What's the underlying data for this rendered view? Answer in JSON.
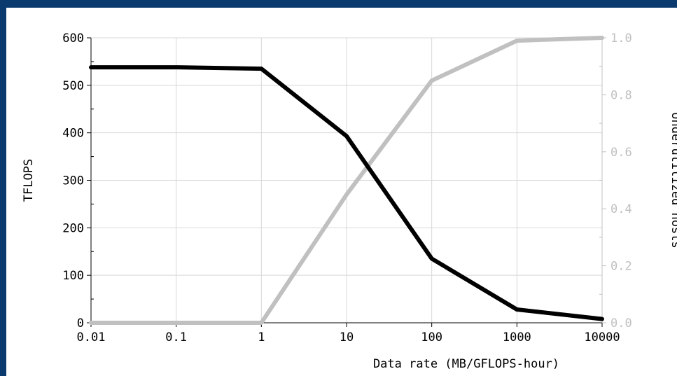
{
  "chart_data": {
    "type": "line",
    "xlabel": "Data rate (MB/GFLOPS-hour)",
    "ylabel": "TFLOPS",
    "y2label": "Underutilized hosts",
    "x_scale": "log",
    "xlim": [
      0.01,
      10000
    ],
    "ylim": [
      0,
      600
    ],
    "y2lim": [
      0.0,
      1.0
    ],
    "x_ticks": [
      "0.01",
      "0.1",
      "1",
      "10",
      "100",
      "1000",
      "10000"
    ],
    "y_ticks": [
      "0",
      "100",
      "200",
      "300",
      "400",
      "500",
      "600"
    ],
    "y2_ticks": [
      "0.0",
      "0.2",
      "0.4",
      "0.6",
      "0.8",
      "1.0"
    ],
    "grid": true,
    "series": [
      {
        "axis": "left",
        "color": "#000000",
        "x": [
          0.01,
          0.1,
          1,
          10,
          100,
          1000,
          10000
        ],
        "y": [
          538,
          538,
          535,
          393,
          135,
          28,
          8
        ]
      },
      {
        "axis": "right",
        "color": "#c0c0c0",
        "x": [
          0.01,
          0.1,
          1,
          10,
          100,
          1000,
          10000
        ],
        "y": [
          0.0,
          0.0,
          0.0,
          0.45,
          0.85,
          0.99,
          1.0
        ]
      }
    ]
  }
}
